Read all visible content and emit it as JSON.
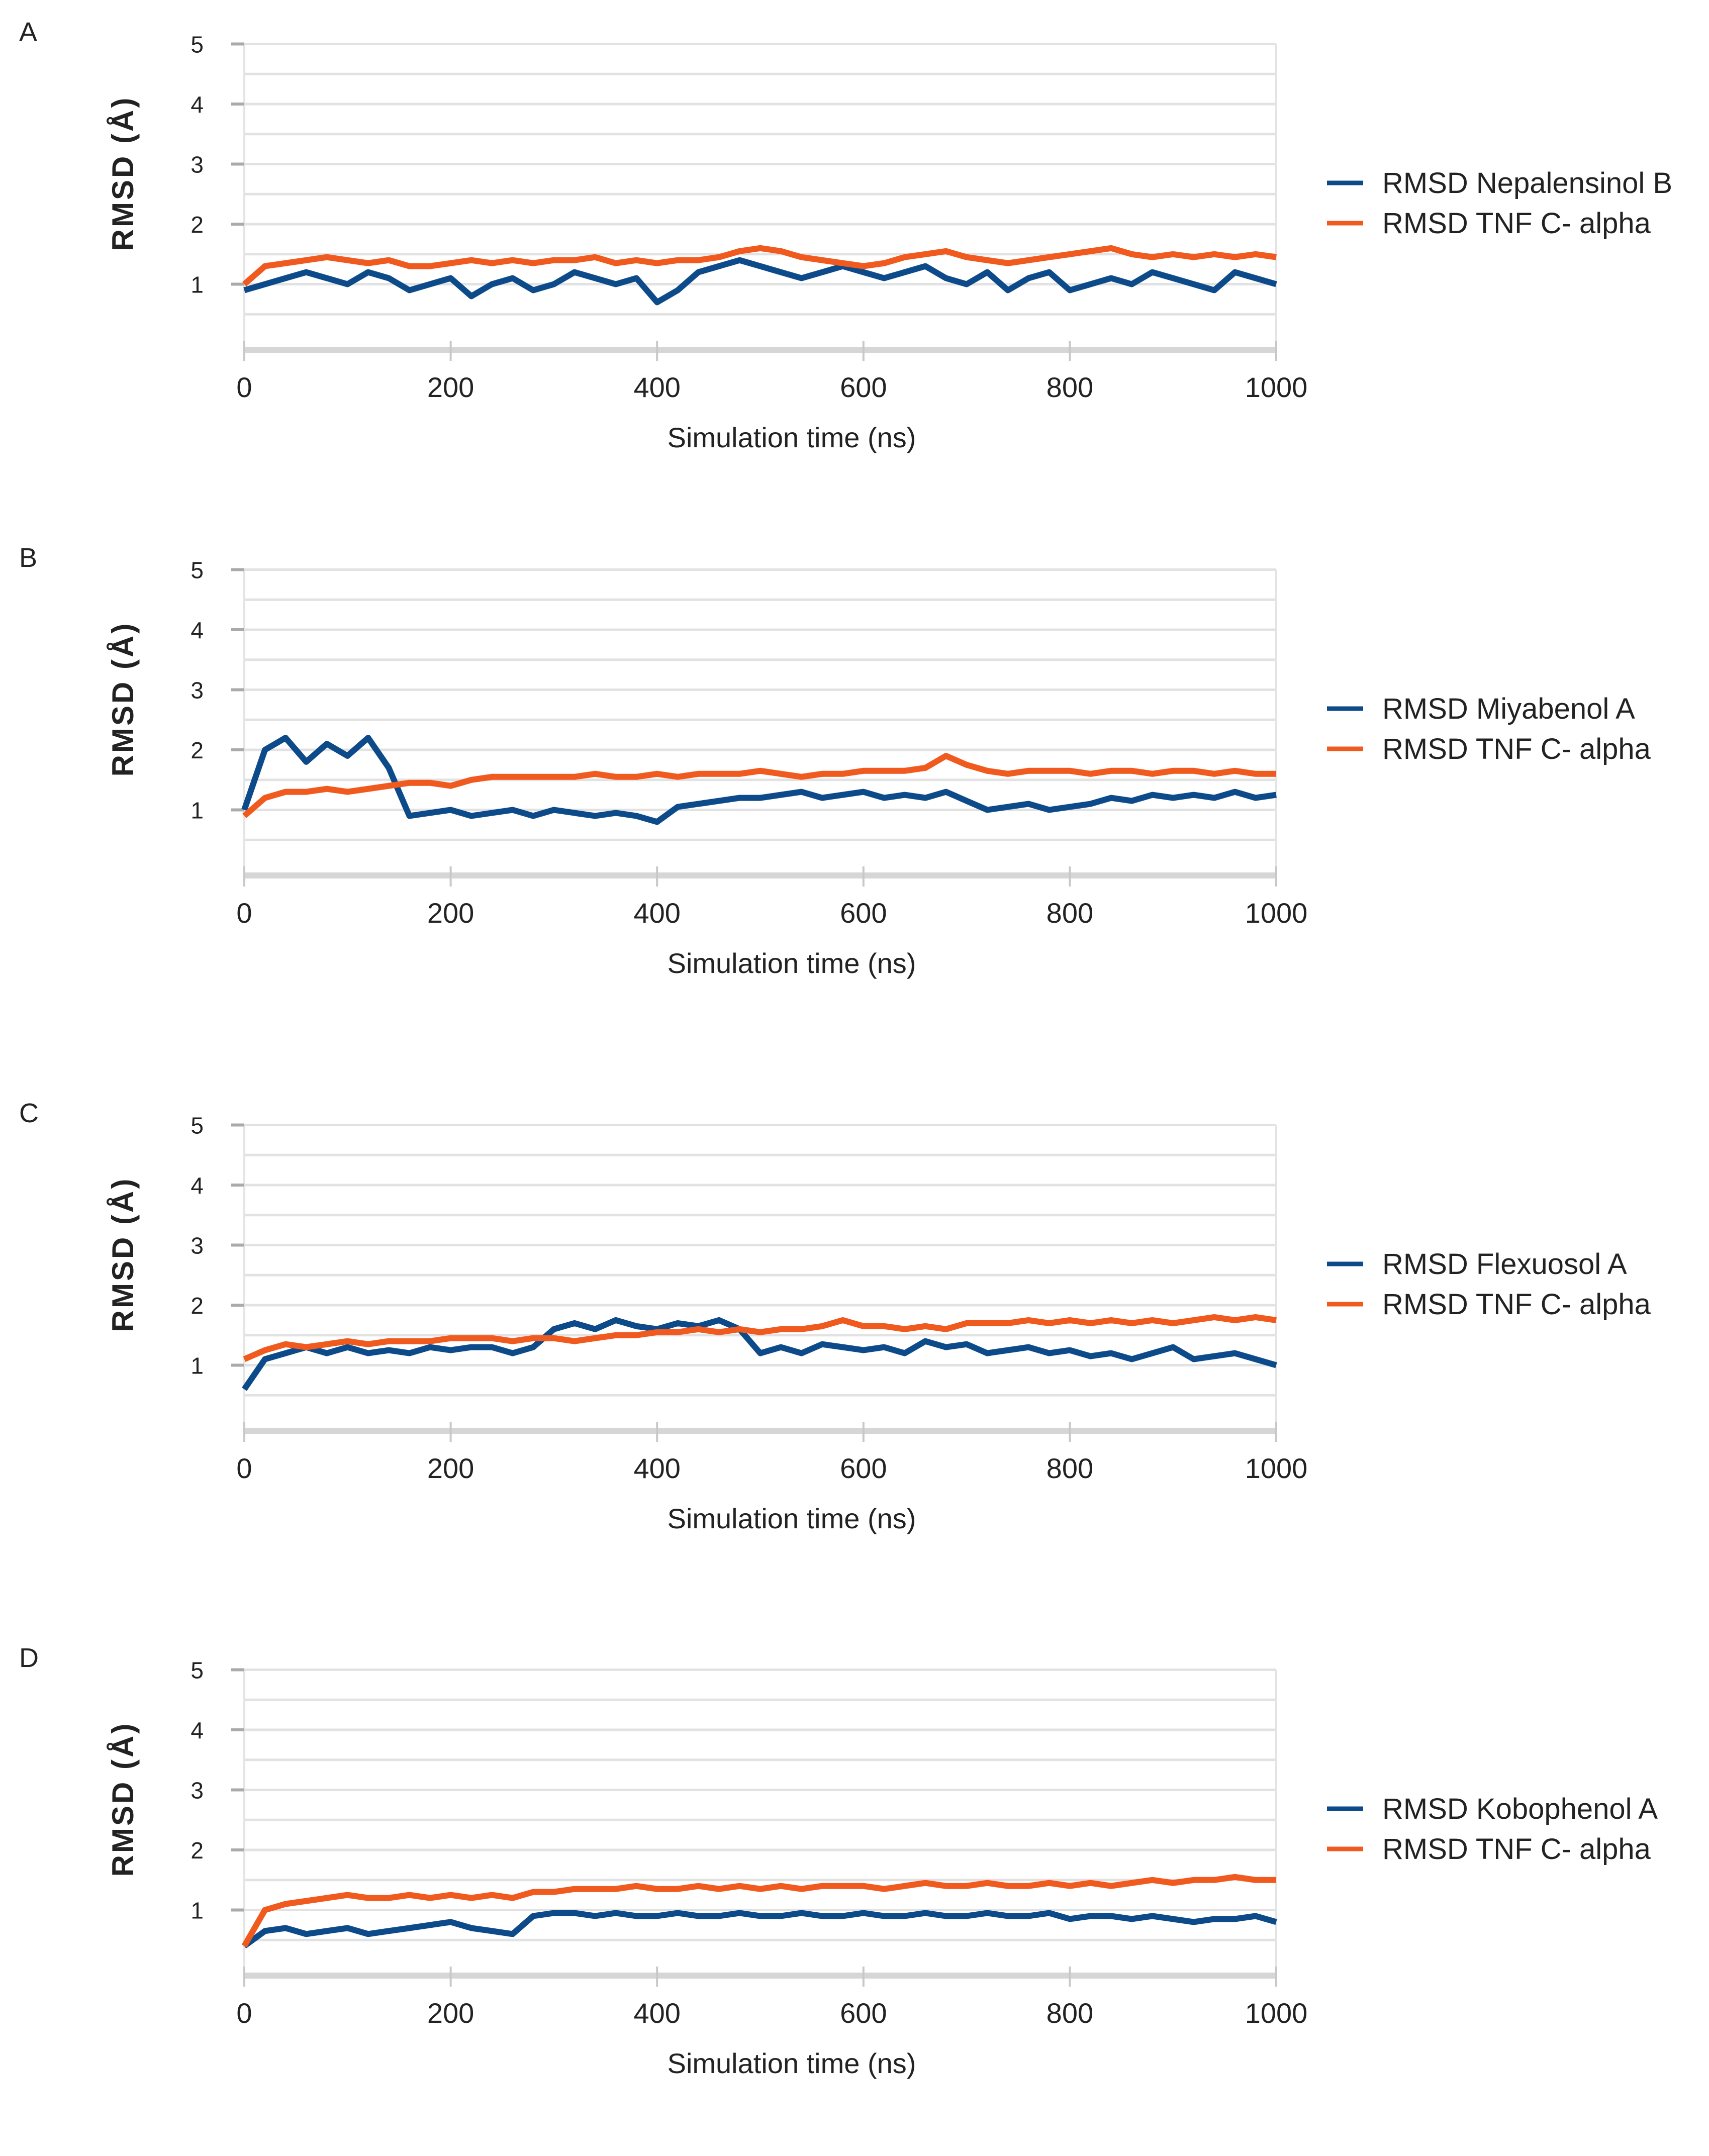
{
  "chart_data": [
    {
      "type": "line",
      "panel_label": "A",
      "xlabel": "Simulation time (ns)",
      "ylabel": "RMSD (Å)",
      "xlim": [
        0,
        1000
      ],
      "ylim": [
        0,
        5
      ],
      "x_ticks": [
        "0",
        "200",
        "400",
        "600",
        "800",
        "1000"
      ],
      "y_ticks": [
        "1",
        "2",
        "3",
        "4",
        "5"
      ],
      "grid": true,
      "legend_position": "right",
      "x": [
        0,
        20,
        40,
        60,
        80,
        100,
        120,
        140,
        160,
        180,
        200,
        220,
        240,
        260,
        280,
        300,
        320,
        340,
        360,
        380,
        400,
        420,
        440,
        460,
        480,
        500,
        520,
        540,
        560,
        580,
        600,
        620,
        640,
        660,
        680,
        700,
        720,
        740,
        760,
        780,
        800,
        820,
        840,
        860,
        880,
        900,
        920,
        940,
        960,
        980,
        1000
      ],
      "series": [
        {
          "name": "RMSD Nepalensinol B",
          "color": "#0d4a8a",
          "values": [
            0.9,
            1.0,
            1.1,
            1.2,
            1.1,
            1.0,
            1.2,
            1.1,
            0.9,
            1.0,
            1.1,
            0.8,
            1.0,
            1.1,
            0.9,
            1.0,
            1.2,
            1.1,
            1.0,
            1.1,
            0.7,
            0.9,
            1.2,
            1.3,
            1.4,
            1.3,
            1.2,
            1.1,
            1.2,
            1.3,
            1.2,
            1.1,
            1.2,
            1.3,
            1.1,
            1.0,
            1.2,
            0.9,
            1.1,
            1.2,
            0.9,
            1.0,
            1.1,
            1.0,
            1.2,
            1.1,
            1.0,
            0.9,
            1.2,
            1.1,
            1.0
          ]
        },
        {
          "name": "RMSD TNF C- alpha",
          "color": "#f05a1e",
          "values": [
            1.0,
            1.3,
            1.35,
            1.4,
            1.45,
            1.4,
            1.35,
            1.4,
            1.3,
            1.3,
            1.35,
            1.4,
            1.35,
            1.4,
            1.35,
            1.4,
            1.4,
            1.45,
            1.35,
            1.4,
            1.35,
            1.4,
            1.4,
            1.45,
            1.55,
            1.6,
            1.55,
            1.45,
            1.4,
            1.35,
            1.3,
            1.35,
            1.45,
            1.5,
            1.55,
            1.45,
            1.4,
            1.35,
            1.4,
            1.45,
            1.5,
            1.55,
            1.6,
            1.5,
            1.45,
            1.5,
            1.45,
            1.5,
            1.45,
            1.5,
            1.45
          ]
        }
      ]
    },
    {
      "type": "line",
      "panel_label": "B",
      "xlabel": "Simulation time (ns)",
      "ylabel": "RMSD (Å)",
      "xlim": [
        0,
        1000
      ],
      "ylim": [
        0,
        5
      ],
      "x_ticks": [
        "0",
        "200",
        "400",
        "600",
        "800",
        "1000"
      ],
      "y_ticks": [
        "1",
        "2",
        "3",
        "4",
        "5"
      ],
      "grid": true,
      "legend_position": "right",
      "x": [
        0,
        20,
        40,
        60,
        80,
        100,
        120,
        140,
        160,
        180,
        200,
        220,
        240,
        260,
        280,
        300,
        320,
        340,
        360,
        380,
        400,
        420,
        440,
        460,
        480,
        500,
        520,
        540,
        560,
        580,
        600,
        620,
        640,
        660,
        680,
        700,
        720,
        740,
        760,
        780,
        800,
        820,
        840,
        860,
        880,
        900,
        920,
        940,
        960,
        980,
        1000
      ],
      "series": [
        {
          "name": "RMSD Miyabenol A",
          "color": "#0d4a8a",
          "values": [
            1.0,
            2.0,
            2.2,
            1.8,
            2.1,
            1.9,
            2.2,
            1.7,
            0.9,
            0.95,
            1.0,
            0.9,
            0.95,
            1.0,
            0.9,
            1.0,
            0.95,
            0.9,
            0.95,
            0.9,
            0.8,
            1.05,
            1.1,
            1.15,
            1.2,
            1.2,
            1.25,
            1.3,
            1.2,
            1.25,
            1.3,
            1.2,
            1.25,
            1.2,
            1.3,
            1.15,
            1.0,
            1.05,
            1.1,
            1.0,
            1.05,
            1.1,
            1.2,
            1.15,
            1.25,
            1.2,
            1.25,
            1.2,
            1.3,
            1.2,
            1.25
          ]
        },
        {
          "name": "RMSD TNF C- alpha",
          "color": "#f05a1e",
          "values": [
            0.9,
            1.2,
            1.3,
            1.3,
            1.35,
            1.3,
            1.35,
            1.4,
            1.45,
            1.45,
            1.4,
            1.5,
            1.55,
            1.55,
            1.55,
            1.55,
            1.55,
            1.6,
            1.55,
            1.55,
            1.6,
            1.55,
            1.6,
            1.6,
            1.6,
            1.65,
            1.6,
            1.55,
            1.6,
            1.6,
            1.65,
            1.65,
            1.65,
            1.7,
            1.9,
            1.75,
            1.65,
            1.6,
            1.65,
            1.65,
            1.65,
            1.6,
            1.65,
            1.65,
            1.6,
            1.65,
            1.65,
            1.6,
            1.65,
            1.6,
            1.6
          ]
        }
      ]
    },
    {
      "type": "line",
      "panel_label": "C",
      "xlabel": "Simulation time (ns)",
      "ylabel": "RMSD (Å)",
      "xlim": [
        0,
        1000
      ],
      "ylim": [
        0,
        5
      ],
      "x_ticks": [
        "0",
        "200",
        "400",
        "600",
        "800",
        "1000"
      ],
      "y_ticks": [
        "1",
        "2",
        "3",
        "4",
        "5"
      ],
      "grid": true,
      "legend_position": "right",
      "x": [
        0,
        20,
        40,
        60,
        80,
        100,
        120,
        140,
        160,
        180,
        200,
        220,
        240,
        260,
        280,
        300,
        320,
        340,
        360,
        380,
        400,
        420,
        440,
        460,
        480,
        500,
        520,
        540,
        560,
        580,
        600,
        620,
        640,
        660,
        680,
        700,
        720,
        740,
        760,
        780,
        800,
        820,
        840,
        860,
        880,
        900,
        920,
        940,
        960,
        980,
        1000
      ],
      "series": [
        {
          "name": "RMSD Flexuosol A",
          "color": "#0d4a8a",
          "values": [
            0.6,
            1.1,
            1.2,
            1.3,
            1.2,
            1.3,
            1.2,
            1.25,
            1.2,
            1.3,
            1.25,
            1.3,
            1.3,
            1.2,
            1.3,
            1.6,
            1.7,
            1.6,
            1.75,
            1.65,
            1.6,
            1.7,
            1.65,
            1.75,
            1.6,
            1.2,
            1.3,
            1.2,
            1.35,
            1.3,
            1.25,
            1.3,
            1.2,
            1.4,
            1.3,
            1.35,
            1.2,
            1.25,
            1.3,
            1.2,
            1.25,
            1.15,
            1.2,
            1.1,
            1.2,
            1.3,
            1.1,
            1.15,
            1.2,
            1.1,
            1.0
          ]
        },
        {
          "name": "RMSD TNF C- alpha",
          "color": "#f05a1e",
          "values": [
            1.1,
            1.25,
            1.35,
            1.3,
            1.35,
            1.4,
            1.35,
            1.4,
            1.4,
            1.4,
            1.45,
            1.45,
            1.45,
            1.4,
            1.45,
            1.45,
            1.4,
            1.45,
            1.5,
            1.5,
            1.55,
            1.55,
            1.6,
            1.55,
            1.6,
            1.55,
            1.6,
            1.6,
            1.65,
            1.75,
            1.65,
            1.65,
            1.6,
            1.65,
            1.6,
            1.7,
            1.7,
            1.7,
            1.75,
            1.7,
            1.75,
            1.7,
            1.75,
            1.7,
            1.75,
            1.7,
            1.75,
            1.8,
            1.75,
            1.8,
            1.75
          ]
        }
      ]
    },
    {
      "type": "line",
      "panel_label": "D",
      "xlabel": "Simulation time (ns)",
      "ylabel": "RMSD (Å)",
      "xlim": [
        0,
        1000
      ],
      "ylim": [
        0,
        5
      ],
      "x_ticks": [
        "0",
        "200",
        "400",
        "600",
        "800",
        "1000"
      ],
      "y_ticks": [
        "1",
        "2",
        "3",
        "4",
        "5"
      ],
      "grid": true,
      "legend_position": "right",
      "x": [
        0,
        20,
        40,
        60,
        80,
        100,
        120,
        140,
        160,
        180,
        200,
        220,
        240,
        260,
        280,
        300,
        320,
        340,
        360,
        380,
        400,
        420,
        440,
        460,
        480,
        500,
        520,
        540,
        560,
        580,
        600,
        620,
        640,
        660,
        680,
        700,
        720,
        740,
        760,
        780,
        800,
        820,
        840,
        860,
        880,
        900,
        920,
        940,
        960,
        980,
        1000
      ],
      "series": [
        {
          "name": "RMSD Kobophenol A",
          "color": "#0d4a8a",
          "values": [
            0.4,
            0.65,
            0.7,
            0.6,
            0.65,
            0.7,
            0.6,
            0.65,
            0.7,
            0.75,
            0.8,
            0.7,
            0.65,
            0.6,
            0.9,
            0.95,
            0.95,
            0.9,
            0.95,
            0.9,
            0.9,
            0.95,
            0.9,
            0.9,
            0.95,
            0.9,
            0.9,
            0.95,
            0.9,
            0.9,
            0.95,
            0.9,
            0.9,
            0.95,
            0.9,
            0.9,
            0.95,
            0.9,
            0.9,
            0.95,
            0.85,
            0.9,
            0.9,
            0.85,
            0.9,
            0.85,
            0.8,
            0.85,
            0.85,
            0.9,
            0.8
          ]
        },
        {
          "name": "RMSD TNF C- alpha",
          "color": "#f05a1e",
          "values": [
            0.4,
            1.0,
            1.1,
            1.15,
            1.2,
            1.25,
            1.2,
            1.2,
            1.25,
            1.2,
            1.25,
            1.2,
            1.25,
            1.2,
            1.3,
            1.3,
            1.35,
            1.35,
            1.35,
            1.4,
            1.35,
            1.35,
            1.4,
            1.35,
            1.4,
            1.35,
            1.4,
            1.35,
            1.4,
            1.4,
            1.4,
            1.35,
            1.4,
            1.45,
            1.4,
            1.4,
            1.45,
            1.4,
            1.4,
            1.45,
            1.4,
            1.45,
            1.4,
            1.45,
            1.5,
            1.45,
            1.5,
            1.5,
            1.55,
            1.5,
            1.5
          ]
        }
      ]
    }
  ]
}
